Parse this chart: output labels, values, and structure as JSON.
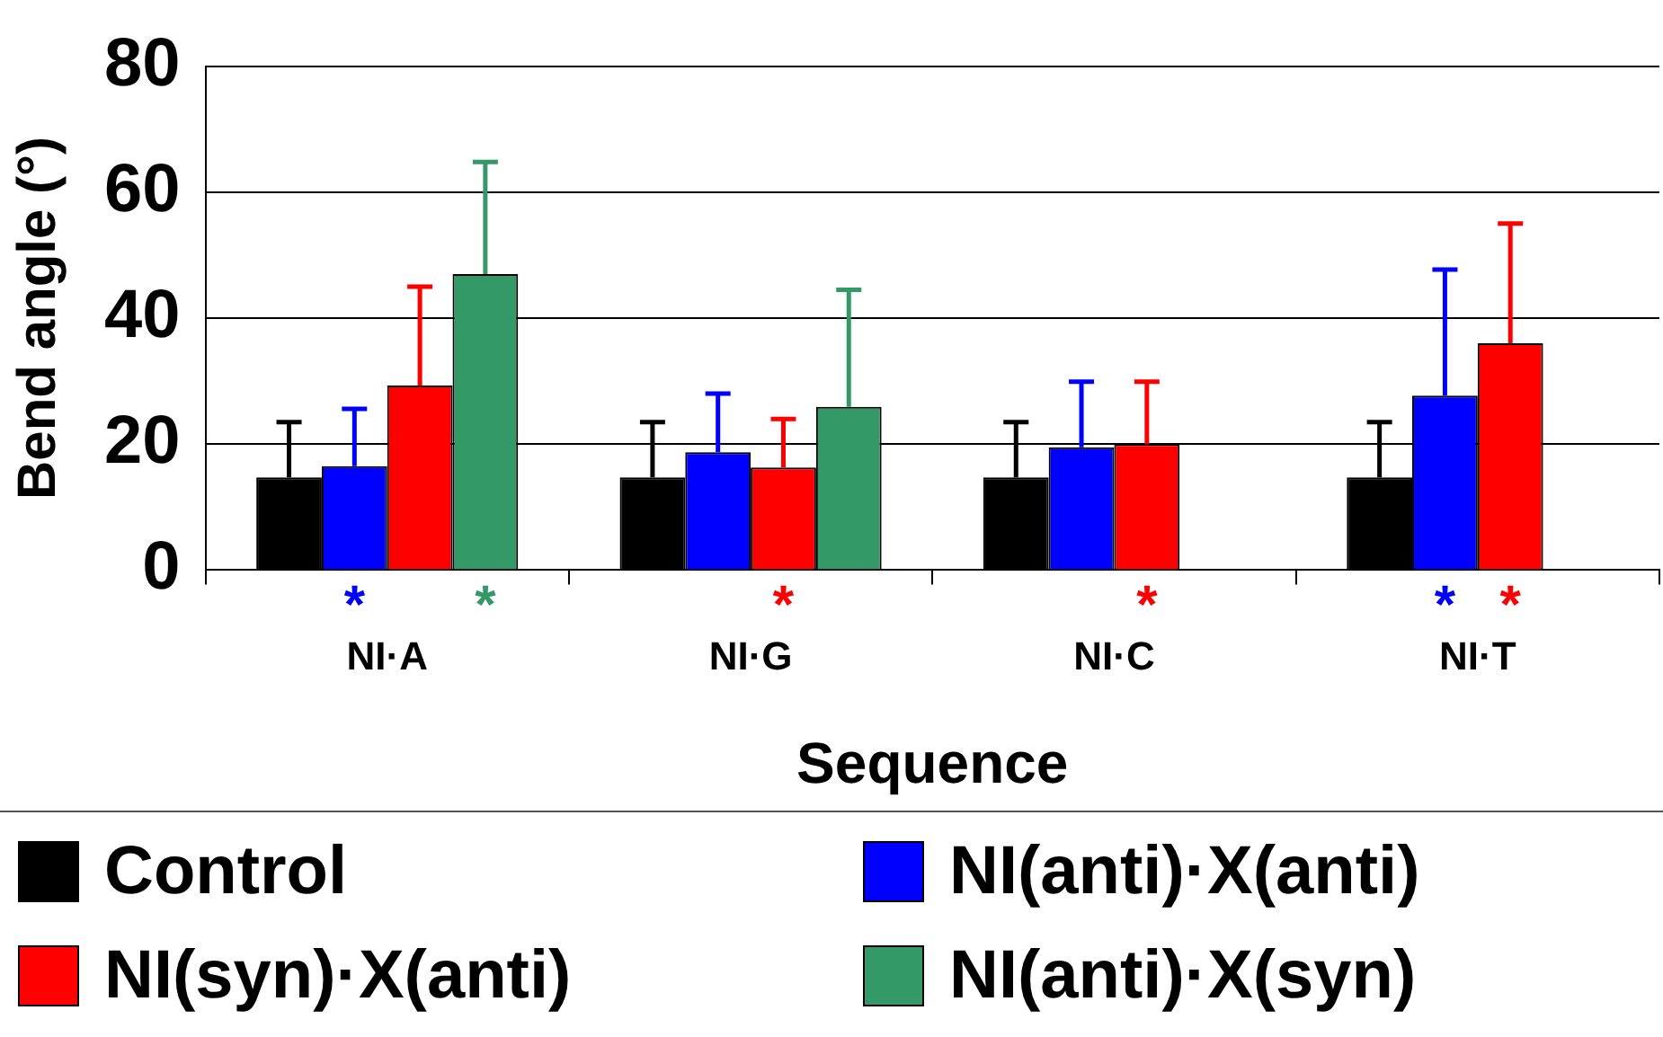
{
  "chart_data": {
    "type": "bar",
    "xlabel": "Sequence",
    "ylabel": "Bend angle (°)",
    "categories": [
      "NI·A",
      "NI·G",
      "NI·C",
      "NI·T"
    ],
    "ylim": [
      0,
      80
    ],
    "yticks": [
      0,
      20,
      40,
      60,
      80
    ],
    "grid": "y",
    "legend": "bottom",
    "series": [
      {
        "name": "Control",
        "color": "#000000",
        "values": [
          14.7,
          14.7,
          14.7,
          14.7
        ],
        "errors": [
          [
            14.7,
            23.5
          ],
          [
            14.7,
            23.5
          ],
          [
            14.7,
            23.5
          ],
          [
            14.7,
            23.5
          ]
        ]
      },
      {
        "name": "NI(anti)·X(anti)",
        "color": "#0000ff",
        "values": [
          16.5,
          18.7,
          19.5,
          27.7
        ],
        "errors": [
          [
            16.5,
            25.6
          ],
          [
            18.7,
            28
          ],
          [
            19.5,
            29.9
          ],
          [
            27.7,
            47.7
          ]
        ],
        "value_labels": [
          "*",
          null,
          null,
          "*"
        ]
      },
      {
        "name": "NI(syn)·X(anti)",
        "color": "#ff0000",
        "values": [
          29.3,
          16.3,
          20,
          36
        ],
        "errors": [
          [
            29.3,
            45
          ],
          [
            16.3,
            24
          ],
          [
            20,
            29.9
          ],
          [
            36,
            55
          ]
        ],
        "value_labels": [
          null,
          "*",
          "*",
          "*"
        ]
      },
      {
        "name": "NI(anti)·X(syn)",
        "color": "#339966",
        "values": [
          47,
          25.9,
          null,
          null
        ],
        "errors": [
          [
            47,
            64.8
          ],
          [
            25.9,
            44.5
          ],
          null,
          null
        ],
        "value_labels": [
          "*",
          null,
          null,
          null
        ]
      }
    ]
  }
}
